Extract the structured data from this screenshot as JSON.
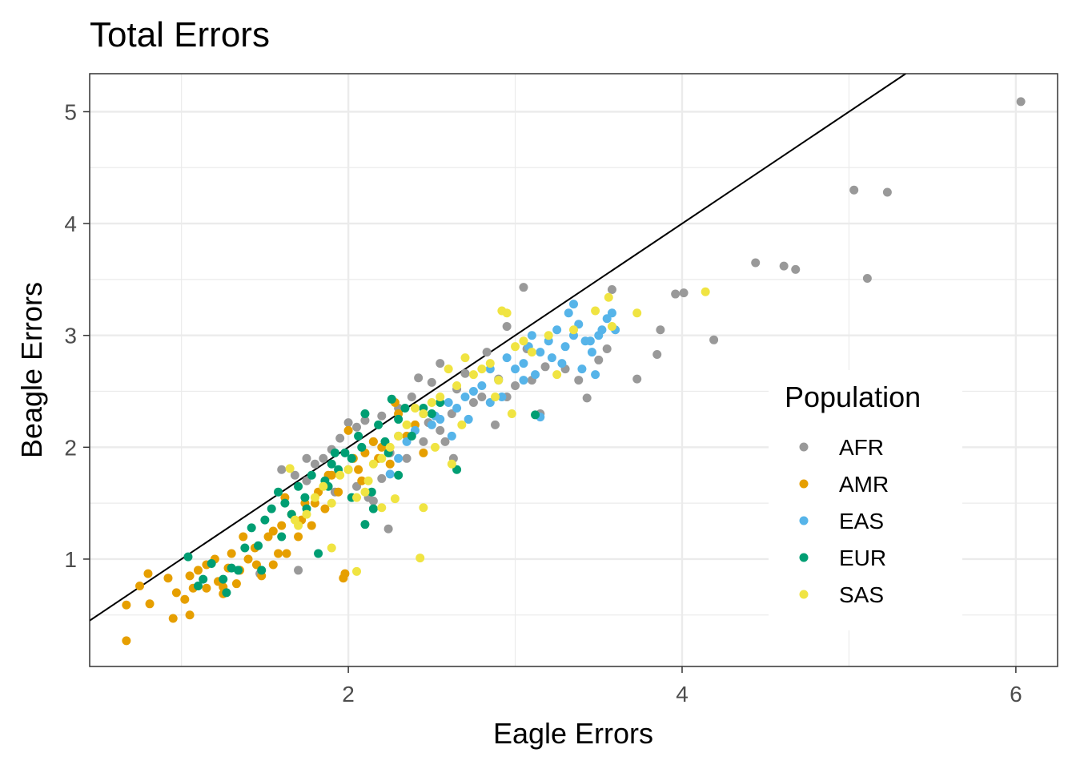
{
  "chart_data": {
    "type": "scatter",
    "title": "Total Errors",
    "xlabel": "Eagle Errors",
    "ylabel": "Beagle Errors",
    "xlim": [
      0.45,
      6.25
    ],
    "ylim": [
      0.04,
      5.34
    ],
    "x_ticks": [
      2,
      4,
      6
    ],
    "y_ticks": [
      1,
      2,
      3,
      4,
      5
    ],
    "grid": true,
    "reference_line": {
      "slope": 1,
      "intercept": 0
    },
    "legend": {
      "title": "Population",
      "placement": "right"
    },
    "series": [
      {
        "name": "AFR",
        "color": "#999999",
        "points": [
          [
            6.03,
            5.09
          ],
          [
            5.03,
            4.3
          ],
          [
            5.23,
            4.28
          ],
          [
            4.44,
            3.65
          ],
          [
            4.61,
            3.62
          ],
          [
            4.68,
            3.59
          ],
          [
            5.11,
            3.51
          ],
          [
            3.96,
            3.37
          ],
          [
            4.01,
            3.38
          ],
          [
            3.87,
            3.05
          ],
          [
            3.85,
            2.83
          ],
          [
            4.19,
            2.96
          ],
          [
            3.73,
            2.61
          ],
          [
            3.43,
            2.44
          ],
          [
            3.58,
            3.41
          ],
          [
            3.05,
            3.43
          ],
          [
            3.55,
            2.88
          ],
          [
            2.95,
            3.08
          ],
          [
            3.07,
            2.88
          ],
          [
            3.18,
            2.72
          ],
          [
            2.83,
            2.85
          ],
          [
            2.9,
            2.61
          ],
          [
            3.0,
            2.55
          ],
          [
            2.8,
            2.45
          ],
          [
            2.65,
            2.52
          ],
          [
            2.7,
            2.66
          ],
          [
            2.55,
            2.75
          ],
          [
            2.5,
            2.58
          ],
          [
            2.42,
            2.62
          ],
          [
            2.38,
            2.45
          ],
          [
            2.3,
            2.35
          ],
          [
            2.2,
            2.28
          ],
          [
            2.1,
            2.24
          ],
          [
            2.05,
            2.18
          ],
          [
            2.15,
            2.05
          ],
          [
            2.0,
            2.22
          ],
          [
            1.95,
            2.08
          ],
          [
            1.9,
            1.98
          ],
          [
            1.85,
            1.9
          ],
          [
            1.8,
            1.85
          ],
          [
            1.75,
            1.7
          ],
          [
            2.0,
            1.8
          ],
          [
            2.05,
            1.65
          ],
          [
            2.2,
            1.72
          ],
          [
            2.35,
            1.9
          ],
          [
            2.45,
            2.05
          ],
          [
            2.55,
            2.15
          ],
          [
            2.25,
            1.95
          ],
          [
            2.12,
            1.55
          ],
          [
            2.24,
            1.27
          ],
          [
            1.7,
            0.9
          ],
          [
            1.47,
            0.87
          ],
          [
            1.68,
            1.75
          ],
          [
            1.6,
            1.8
          ],
          [
            1.75,
            1.9
          ],
          [
            1.92,
            1.6
          ],
          [
            2.15,
            1.52
          ],
          [
            2.63,
            1.9
          ],
          [
            3.15,
            2.3
          ],
          [
            3.38,
            2.6
          ],
          [
            3.5,
            2.78
          ],
          [
            3.3,
            2.7
          ],
          [
            2.75,
            2.4
          ],
          [
            2.62,
            2.3
          ],
          [
            2.88,
            2.2
          ],
          [
            2.95,
            2.45
          ],
          [
            3.1,
            2.6
          ],
          [
            2.58,
            2.05
          ],
          [
            2.3,
            2.1
          ],
          [
            2.48,
            2.22
          ]
        ]
      },
      {
        "name": "AMR",
        "color": "#e69f00",
        "points": [
          [
            0.67,
            0.27
          ],
          [
            0.67,
            0.59
          ],
          [
            0.75,
            0.76
          ],
          [
            0.8,
            0.87
          ],
          [
            0.81,
            0.6
          ],
          [
            0.92,
            0.83
          ],
          [
            0.95,
            0.47
          ],
          [
            0.97,
            0.7
          ],
          [
            1.02,
            0.64
          ],
          [
            1.05,
            0.5
          ],
          [
            1.07,
            0.74
          ],
          [
            1.1,
            0.9
          ],
          [
            1.15,
            0.74
          ],
          [
            1.2,
            1.0
          ],
          [
            1.22,
            0.8
          ],
          [
            1.25,
            0.69
          ],
          [
            1.28,
            0.92
          ],
          [
            1.3,
            1.05
          ],
          [
            1.33,
            0.78
          ],
          [
            1.37,
            1.2
          ],
          [
            1.4,
            1.0
          ],
          [
            1.44,
            1.1
          ],
          [
            1.48,
            0.85
          ],
          [
            1.52,
            1.2
          ],
          [
            1.55,
            0.95
          ],
          [
            1.6,
            1.3
          ],
          [
            1.63,
            1.05
          ],
          [
            1.66,
            1.4
          ],
          [
            1.7,
            1.2
          ],
          [
            1.74,
            1.5
          ],
          [
            1.78,
            1.3
          ],
          [
            1.82,
            1.6
          ],
          [
            1.86,
            1.45
          ],
          [
            1.9,
            1.75
          ],
          [
            1.94,
            1.6
          ],
          [
            1.98,
            0.87
          ],
          [
            1.97,
            0.83
          ],
          [
            2.0,
            2.15
          ],
          [
            2.03,
            1.9
          ],
          [
            2.06,
            1.8
          ],
          [
            2.1,
            1.95
          ],
          [
            2.15,
            2.05
          ],
          [
            2.2,
            2.0
          ],
          [
            2.25,
            1.85
          ],
          [
            2.3,
            2.3
          ],
          [
            2.35,
            2.1
          ],
          [
            2.4,
            2.2
          ],
          [
            2.45,
            1.95
          ],
          [
            1.25,
            0.75
          ],
          [
            1.35,
            0.9
          ],
          [
            1.45,
            0.95
          ],
          [
            1.55,
            1.25
          ],
          [
            1.62,
            1.55
          ],
          [
            1.88,
            1.75
          ],
          [
            1.8,
            1.5
          ],
          [
            2.08,
            1.7
          ],
          [
            1.15,
            0.95
          ],
          [
            1.05,
            0.85
          ],
          [
            2.28,
            2.4
          ],
          [
            2.18,
            1.9
          ],
          [
            1.72,
            1.35
          ],
          [
            1.58,
            1.05
          ]
        ]
      },
      {
        "name": "EAS",
        "color": "#56b4e9",
        "points": [
          [
            3.6,
            3.05
          ],
          [
            3.55,
            3.15
          ],
          [
            3.5,
            3.0
          ],
          [
            3.46,
            2.85
          ],
          [
            3.42,
            2.95
          ],
          [
            3.38,
            3.1
          ],
          [
            3.32,
            3.2
          ],
          [
            3.3,
            2.9
          ],
          [
            3.25,
            3.05
          ],
          [
            3.2,
            2.95
          ],
          [
            3.15,
            2.85
          ],
          [
            3.1,
            3.0
          ],
          [
            3.05,
            2.75
          ],
          [
            3.0,
            2.7
          ],
          [
            2.95,
            2.8
          ],
          [
            2.9,
            2.6
          ],
          [
            2.85,
            2.7
          ],
          [
            2.8,
            2.55
          ],
          [
            2.75,
            2.5
          ],
          [
            2.7,
            2.45
          ],
          [
            2.65,
            2.35
          ],
          [
            2.6,
            2.4
          ],
          [
            2.55,
            2.25
          ],
          [
            2.5,
            2.2
          ],
          [
            2.45,
            2.3
          ],
          [
            2.4,
            2.15
          ],
          [
            2.35,
            2.05
          ],
          [
            2.3,
            1.9
          ],
          [
            3.58,
            3.2
          ],
          [
            3.48,
            2.65
          ],
          [
            3.4,
            2.7
          ],
          [
            3.35,
            3.28
          ],
          [
            3.15,
            2.27
          ],
          [
            2.92,
            2.45
          ],
          [
            3.12,
            2.65
          ],
          [
            3.22,
            2.8
          ],
          [
            3.35,
            3.0
          ],
          [
            3.45,
            2.95
          ],
          [
            3.52,
            3.05
          ],
          [
            2.62,
            2.1
          ],
          [
            2.52,
            2.28
          ],
          [
            2.72,
            2.25
          ],
          [
            2.85,
            2.4
          ],
          [
            3.05,
            2.6
          ],
          [
            3.28,
            2.75
          ],
          [
            2.25,
            1.76
          ],
          [
            3.08,
            2.9
          ]
        ]
      },
      {
        "name": "EUR",
        "color": "#009e73",
        "points": [
          [
            1.04,
            1.02
          ],
          [
            1.13,
            0.82
          ],
          [
            1.18,
            0.96
          ],
          [
            1.25,
            0.82
          ],
          [
            1.27,
            0.7
          ],
          [
            1.3,
            0.92
          ],
          [
            1.34,
            0.9
          ],
          [
            1.38,
            1.1
          ],
          [
            1.42,
            1.28
          ],
          [
            1.46,
            1.12
          ],
          [
            1.5,
            1.35
          ],
          [
            1.54,
            1.45
          ],
          [
            1.58,
            1.6
          ],
          [
            1.62,
            1.5
          ],
          [
            1.66,
            1.4
          ],
          [
            1.7,
            1.65
          ],
          [
            1.74,
            1.55
          ],
          [
            1.78,
            1.75
          ],
          [
            1.82,
            1.05
          ],
          [
            1.86,
            1.7
          ],
          [
            1.9,
            1.85
          ],
          [
            1.94,
            1.8
          ],
          [
            1.98,
            1.95
          ],
          [
            2.02,
            1.9
          ],
          [
            2.06,
            2.1
          ],
          [
            2.1,
            1.31
          ],
          [
            2.1,
            2.3
          ],
          [
            2.14,
            1.6
          ],
          [
            2.18,
            2.2
          ],
          [
            2.22,
            2.05
          ],
          [
            2.26,
            2.43
          ],
          [
            2.3,
            2.25
          ],
          [
            2.34,
            2.35
          ],
          [
            2.38,
            2.1
          ],
          [
            2.45,
            2.35
          ],
          [
            2.5,
            2.3
          ],
          [
            2.55,
            2.4
          ],
          [
            2.65,
            1.8
          ],
          [
            3.12,
            2.29
          ],
          [
            2.3,
            1.75
          ],
          [
            1.48,
            0.9
          ],
          [
            1.6,
            1.2
          ],
          [
            1.88,
            1.65
          ],
          [
            2.02,
            1.55
          ],
          [
            2.15,
            1.45
          ],
          [
            1.1,
            0.76
          ],
          [
            1.92,
            1.95
          ],
          [
            2.08,
            2.0
          ],
          [
            2.24,
            1.95
          ],
          [
            1.75,
            1.45
          ]
        ]
      },
      {
        "name": "SAS",
        "color": "#f0e442",
        "points": [
          [
            4.14,
            3.39
          ],
          [
            3.73,
            3.2
          ],
          [
            3.56,
            3.34
          ],
          [
            3.58,
            3.08
          ],
          [
            3.48,
            3.22
          ],
          [
            3.35,
            3.05
          ],
          [
            3.2,
            3.0
          ],
          [
            3.05,
            2.95
          ],
          [
            3.0,
            2.9
          ],
          [
            2.95,
            3.2
          ],
          [
            2.9,
            2.6
          ],
          [
            2.85,
            2.75
          ],
          [
            2.8,
            2.7
          ],
          [
            2.75,
            2.65
          ],
          [
            2.7,
            2.8
          ],
          [
            2.65,
            2.55
          ],
          [
            2.6,
            2.7
          ],
          [
            2.55,
            2.45
          ],
          [
            2.5,
            2.4
          ],
          [
            2.45,
            2.3
          ],
          [
            2.4,
            2.35
          ],
          [
            2.35,
            2.2
          ],
          [
            2.3,
            2.1
          ],
          [
            2.25,
            2.0
          ],
          [
            2.2,
            1.9
          ],
          [
            2.15,
            1.85
          ],
          [
            2.1,
            1.6
          ],
          [
            2.05,
            1.55
          ],
          [
            2.0,
            1.8
          ],
          [
            1.95,
            1.75
          ],
          [
            1.9,
            1.5
          ],
          [
            1.85,
            1.65
          ],
          [
            1.8,
            1.55
          ],
          [
            1.75,
            1.4
          ],
          [
            1.7,
            1.3
          ],
          [
            1.65,
            1.81
          ],
          [
            1.9,
            1.1
          ],
          [
            2.05,
            0.89
          ],
          [
            2.43,
            1.01
          ],
          [
            2.45,
            1.46
          ],
          [
            2.2,
            1.46
          ],
          [
            2.28,
            1.54
          ],
          [
            2.62,
            1.85
          ],
          [
            2.98,
            2.3
          ],
          [
            3.1,
            2.85
          ],
          [
            3.25,
            2.65
          ],
          [
            2.88,
            2.45
          ],
          [
            2.52,
            2.0
          ],
          [
            2.68,
            2.2
          ],
          [
            2.92,
            3.22
          ],
          [
            1.68,
            1.35
          ],
          [
            2.12,
            1.7
          ]
        ]
      }
    ]
  }
}
